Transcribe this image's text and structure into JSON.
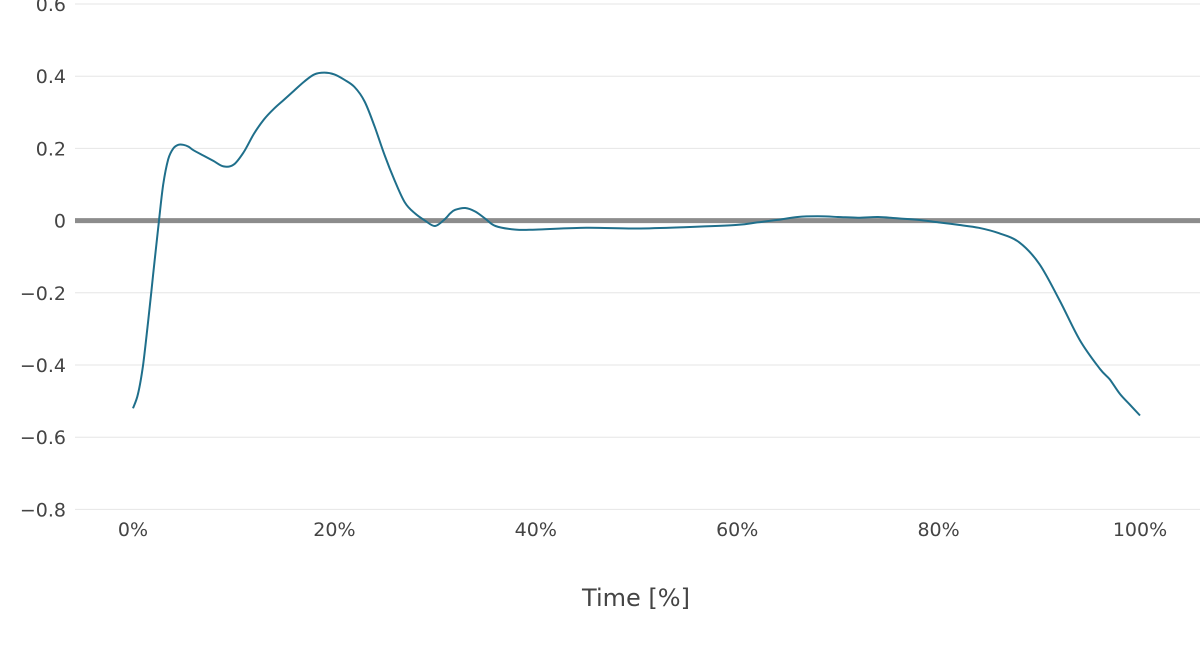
{
  "chart_data": {
    "type": "line",
    "title": "",
    "xlabel": "Time [%]",
    "ylabel": "",
    "xlim": [
      0,
      100
    ],
    "ylim": [
      -0.8,
      0.6
    ],
    "x_ticks": [
      {
        "value": 0,
        "label": "0%"
      },
      {
        "value": 20,
        "label": "20%"
      },
      {
        "value": 40,
        "label": "40%"
      },
      {
        "value": 60,
        "label": "60%"
      },
      {
        "value": 80,
        "label": "80%"
      },
      {
        "value": 100,
        "label": "100%"
      }
    ],
    "y_ticks": [
      {
        "value": 0.6,
        "label": "0.6"
      },
      {
        "value": 0.4,
        "label": "0.4"
      },
      {
        "value": 0.2,
        "label": "0.2"
      },
      {
        "value": 0,
        "label": "0"
      },
      {
        "value": -0.2,
        "label": "−0.2"
      },
      {
        "value": -0.4,
        "label": "−0.4"
      },
      {
        "value": -0.6,
        "label": "−0.6"
      },
      {
        "value": -0.8,
        "label": "−0.8"
      }
    ],
    "grid": true,
    "zero_line": true,
    "colors": {
      "line": "#1f6f8b",
      "zero_line": "#8c8c8c",
      "grid": "#e6e6e6",
      "text": "#444444"
    },
    "series": [
      {
        "x": [
          0,
          0.5,
          1,
          1.5,
          2,
          2.5,
          3,
          3.5,
          4,
          4.5,
          5,
          5.5,
          6,
          7,
          8,
          9,
          10,
          11,
          12,
          13,
          14,
          15,
          16,
          17,
          18,
          19,
          20,
          21,
          22,
          23,
          24,
          25,
          26,
          27,
          28,
          29,
          30,
          31,
          31.5,
          32,
          33,
          34,
          35,
          36,
          38,
          40,
          45,
          50,
          55,
          60,
          62,
          64,
          66,
          68,
          70,
          72,
          74,
          76,
          78,
          80,
          82,
          84,
          86,
          88,
          90,
          92,
          94,
          96,
          97,
          98,
          99,
          100
        ],
        "y": [
          -0.52,
          -0.48,
          -0.4,
          -0.28,
          -0.15,
          -0.02,
          0.1,
          0.17,
          0.2,
          0.21,
          0.21,
          0.205,
          0.195,
          0.18,
          0.165,
          0.15,
          0.155,
          0.19,
          0.24,
          0.28,
          0.31,
          0.335,
          0.36,
          0.385,
          0.405,
          0.41,
          0.405,
          0.39,
          0.37,
          0.33,
          0.26,
          0.18,
          0.11,
          0.05,
          0.02,
          0.0,
          -0.015,
          0.005,
          0.02,
          0.03,
          0.035,
          0.025,
          0.005,
          -0.015,
          -0.025,
          -0.025,
          -0.02,
          -0.022,
          -0.018,
          -0.012,
          -0.005,
          0.002,
          0.01,
          0.012,
          0.01,
          0.008,
          0.01,
          0.006,
          0.002,
          -0.005,
          -0.012,
          -0.02,
          -0.035,
          -0.06,
          -0.12,
          -0.22,
          -0.33,
          -0.41,
          -0.44,
          -0.48,
          -0.51,
          -0.54
        ]
      }
    ]
  }
}
